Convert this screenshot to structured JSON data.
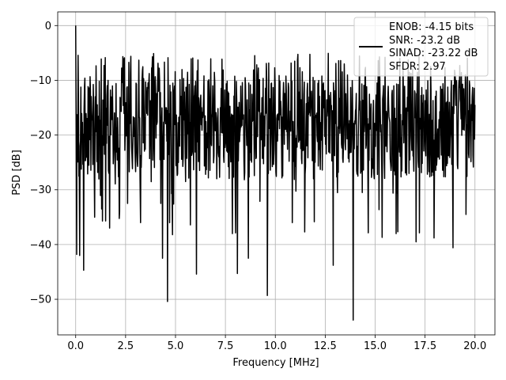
{
  "chart_data": {
    "type": "line",
    "title": "",
    "xlabel": "Frequency [MHz]",
    "ylabel": "PSD [dB]",
    "xlim": [
      -0.9,
      21.0
    ],
    "ylim": [
      -56.5,
      2.5
    ],
    "xticks": [
      0.0,
      2.5,
      5.0,
      7.5,
      10.0,
      12.5,
      15.0,
      17.5,
      20.0
    ],
    "xtick_labels": [
      "0.0",
      "2.5",
      "5.0",
      "7.5",
      "10.0",
      "12.5",
      "15.0",
      "17.5",
      "20.0"
    ],
    "yticks": [
      0,
      -10,
      -20,
      -30,
      -40,
      -50
    ],
    "ytick_labels": [
      "0",
      "−10",
      "−20",
      "−30",
      "−40",
      "−50"
    ],
    "grid": true,
    "legend_position": "upper-right",
    "legend": [
      "ENOB: -4.15 bits",
      "SNR: -23.2 dB",
      "SINAD: -23.22 dB",
      "SFDR: 2.97"
    ],
    "line_color": "#000000",
    "notable_points": [
      {
        "x": 0.0,
        "y": 0.0
      },
      {
        "x": 0.05,
        "y": -41.8
      },
      {
        "x": 0.2,
        "y": -42.0
      },
      {
        "x": 0.4,
        "y": -44.7
      },
      {
        "x": 0.95,
        "y": -35.0
      },
      {
        "x": 1.3,
        "y": -33.5
      },
      {
        "x": 1.5,
        "y": -35.7
      },
      {
        "x": 1.7,
        "y": -37.0
      },
      {
        "x": 2.2,
        "y": -34.0
      },
      {
        "x": 2.6,
        "y": -32.5
      },
      {
        "x": 3.25,
        "y": -36.0
      },
      {
        "x": 4.35,
        "y": -42.5
      },
      {
        "x": 4.6,
        "y": -50.4
      },
      {
        "x": 4.85,
        "y": -38.2
      },
      {
        "x": 6.05,
        "y": -45.4
      },
      {
        "x": 7.85,
        "y": -38.0
      },
      {
        "x": 8.1,
        "y": -45.3
      },
      {
        "x": 8.65,
        "y": -42.5
      },
      {
        "x": 9.6,
        "y": -49.3
      },
      {
        "x": 10.85,
        "y": -36.0
      },
      {
        "x": 12.9,
        "y": -43.8
      },
      {
        "x": 13.9,
        "y": -53.8
      },
      {
        "x": 15.35,
        "y": -38.7
      },
      {
        "x": 16.05,
        "y": -38.0
      },
      {
        "x": 17.05,
        "y": -39.5
      },
      {
        "x": 17.95,
        "y": -38.8
      },
      {
        "x": 18.9,
        "y": -40.6
      },
      {
        "x": 19.55,
        "y": -34.5
      }
    ],
    "noise_band_db": [
      -38.0,
      -5.0
    ],
    "num_points": 1000,
    "x_max": 20.0
  }
}
